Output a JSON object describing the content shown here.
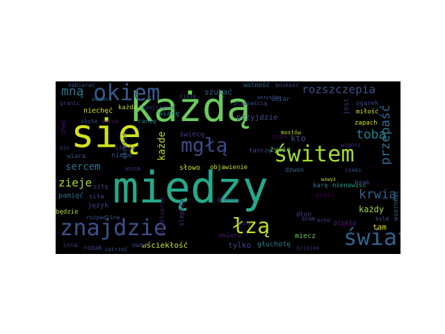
{
  "words": [
    {
      "text": "między",
      "color": "#26a98a"
    },
    {
      "text": "każdą",
      "color": "#6bcb5c"
    },
    {
      "text": "się",
      "color": "#d2e21b"
    },
    {
      "text": "znajdzie",
      "color": "#3b5289"
    },
    {
      "text": "okiem",
      "color": "#38588c"
    },
    {
      "text": "mgłą",
      "color": "#3e4a89"
    },
    {
      "text": "świtem",
      "color": "#a6db35"
    },
    {
      "text": "łzą",
      "color": "#c2df23"
    },
    {
      "text": "świat",
      "color": "#33628d"
    },
    {
      "text": "rozszczepia",
      "color": "#3b528b"
    },
    {
      "text": "krwią",
      "color": "#355f8d"
    },
    {
      "text": "przepaść",
      "color": "#2f6c8e"
    },
    {
      "text": "tobą",
      "color": "#26828e"
    },
    {
      "text": "mną",
      "color": "#2a788e"
    },
    {
      "text": "sercem",
      "color": "#2c738e"
    },
    {
      "text": "zieje",
      "color": "#addc30"
    },
    {
      "text": "każde",
      "color": "#b5de2b"
    },
    {
      "text": "każdy",
      "color": "#a2da37"
    },
    {
      "text": "kto",
      "color": "#3e4989"
    },
    {
      "text": "jest",
      "color": "#46307e"
    },
    {
      "text": "szukać",
      "color": "#31688e"
    },
    {
      "text": "przyjdzie",
      "color": "#3e4c8a"
    },
    {
      "text": "świecę",
      "color": "#443a83"
    },
    {
      "text": "słowo",
      "color": "#c5e021"
    },
    {
      "text": "objawienie",
      "color": "#cae11f"
    },
    {
      "text": "ślepota",
      "color": "#463480"
    },
    {
      "text": "bluźnierca",
      "color": "#481d6f"
    },
    {
      "text": "język",
      "color": "#3f4788"
    },
    {
      "text": "pamięć",
      "color": "#2c728e"
    },
    {
      "text": "siłę",
      "color": "#433e85"
    },
    {
      "text": "niechęć",
      "color": "#d8e219"
    },
    {
      "text": "wiarę",
      "color": "#25848e"
    },
    {
      "text": "wiara",
      "color": "#39558c"
    },
    {
      "text": "niebo",
      "color": "#365c8d"
    },
    {
      "text": "tarczę",
      "color": "#3d4d8a"
    },
    {
      "text": "karę",
      "color": "#2a788e"
    },
    {
      "text": "nienawiść",
      "color": "#20a386"
    },
    {
      "text": "wściekłość",
      "color": "#cde11d"
    },
    {
      "text": "tylko",
      "color": "#3f4788"
    },
    {
      "text": "głuchotę",
      "color": "#26828e"
    },
    {
      "text": "miecz",
      "color": "#6ece58"
    },
    {
      "text": "tam",
      "color": "#dde318"
    },
    {
      "text": "brak",
      "color": "#404588"
    },
    {
      "text": "dzwon",
      "color": "#31688e"
    },
    {
      "text": "dłoń",
      "color": "#414487"
    },
    {
      "text": "zgon",
      "color": "#440154"
    },
    {
      "text": "życie",
      "color": "#6ece58"
    },
    {
      "text": "wina",
      "color": "#46327e"
    },
    {
      "text": "miłość",
      "color": "#d0e11c"
    },
    {
      "text": "zapach",
      "color": "#d5e21a"
    },
    {
      "text": "ogarek",
      "color": "#3e4989"
    },
    {
      "text": "wolność",
      "color": "#2c728e"
    },
    {
      "text": "umiar",
      "color": "#3b528b"
    },
    {
      "text": "umiaru",
      "color": "#481a6c"
    },
    {
      "text": "będzie",
      "color": "#addc30"
    },
    {
      "text": "inna",
      "color": "#46307e"
    },
    {
      "text": "robak",
      "color": "#414487"
    },
    {
      "text": "owoc",
      "color": "#3e4a89"
    },
    {
      "text": "siła",
      "color": "#3e4c8a"
    },
    {
      "text": "każda",
      "color": "#b8de29"
    },
    {
      "text": "ranię",
      "color": "#2c728e"
    },
    {
      "text": "chęć",
      "color": "#4a1486"
    },
    {
      "text": "nic",
      "color": "#3e4989"
    },
    {
      "text": "nabierać",
      "color": "#3b528b"
    },
    {
      "text": "granic",
      "color": "#433e85"
    },
    {
      "text": "boskość",
      "color": "#3e4a89"
    },
    {
      "text": "piekło",
      "color": "#482173"
    },
    {
      "text": "pięść",
      "color": "#440154"
    },
    {
      "text": "wierność",
      "color": "#30698e"
    },
    {
      "text": "oddech",
      "color": "#2d708e"
    },
    {
      "text": "rozpadliną",
      "color": "#3b528b"
    },
    {
      "text": "zatrzeć",
      "color": "#3e4c8a"
    },
    {
      "text": "ścieżek",
      "color": "#472878"
    },
    {
      "text": "miny",
      "color": "#3f4788"
    },
    {
      "text": "granic",
      "color": "#404588"
    },
    {
      "text": "mostów",
      "color": "#c0df25"
    },
    {
      "text": "złota",
      "color": "#3b528b"
    },
    {
      "text": "serca",
      "color": "#482576"
    },
    {
      "text": "spojrzenie",
      "color": "#3d4d8a"
    },
    {
      "text": "przepaścią",
      "color": "#3e4989"
    },
    {
      "text": "wzrok",
      "color": "#450559"
    },
    {
      "text": "echo",
      "color": "#404688"
    },
    {
      "text": "bram",
      "color": "#3e4a89"
    },
    {
      "text": "byle",
      "color": "#39568c"
    },
    {
      "text": "otchłań",
      "color": "#3a548c"
    },
    {
      "text": "wszystko",
      "color": "#3b528b"
    },
    {
      "text": "ciszę",
      "color": "#3b528b"
    },
    {
      "text": "cienia",
      "color": "#404588"
    },
    {
      "text": "wzwyż",
      "color": "#d2e21b"
    },
    {
      "text": "rzeki",
      "color": "#3a548c"
    },
    {
      "text": "wzgórz",
      "color": "#463480"
    }
  ]
}
